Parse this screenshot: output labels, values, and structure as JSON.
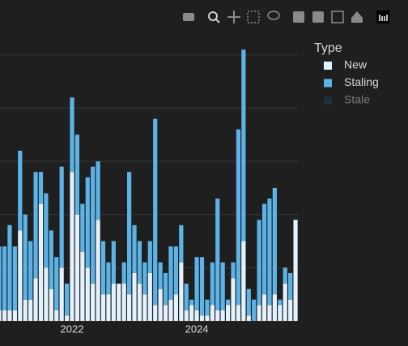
{
  "chart_data": {
    "type": "bar",
    "barmode": "stack",
    "categories": [
      null,
      null,
      null,
      null,
      null,
      null,
      null,
      null,
      null,
      null,
      null,
      null,
      null,
      null,
      "2022",
      null,
      null,
      null,
      null,
      null,
      null,
      null,
      null,
      null,
      null,
      null,
      null,
      null,
      null,
      null,
      null,
      null,
      null,
      null,
      null,
      null,
      null,
      null,
      "2024",
      null,
      null,
      null,
      null,
      null,
      null,
      null,
      null,
      null,
      null,
      null,
      null,
      null,
      null,
      null,
      null,
      null,
      null,
      null
    ],
    "series": [
      {
        "name": "New",
        "color": "#e3f2fd",
        "values": [
          2,
          2,
          2,
          2,
          17,
          4,
          4,
          8,
          22,
          10,
          6,
          2,
          10,
          1,
          28,
          20,
          13,
          10,
          7,
          19,
          5,
          5,
          7,
          7,
          7,
          5,
          9,
          7,
          5,
          9,
          3,
          6,
          3,
          4,
          5,
          11,
          2,
          3,
          2,
          1,
          1,
          3,
          2,
          2,
          3,
          8,
          3,
          15,
          1,
          0,
          3,
          5,
          3,
          5,
          3,
          7,
          4,
          19
        ]
      },
      {
        "name": "Staling",
        "color": "#5cb3e6",
        "values": [
          12,
          12,
          16,
          12,
          15,
          16,
          11,
          20,
          6,
          14,
          11,
          10,
          19,
          6,
          14,
          15,
          9,
          17,
          22,
          11,
          10,
          6,
          8,
          0,
          4,
          23,
          9,
          8,
          6,
          6,
          35,
          5,
          6,
          10,
          9,
          7,
          5,
          1,
          10,
          11,
          3,
          8,
          21,
          9,
          1,
          3,
          33,
          36,
          5,
          4,
          16,
          17,
          20,
          20,
          1,
          3,
          5,
          0
        ]
      },
      {
        "name": "Stale",
        "color": "#1d3d56",
        "visible": false
      }
    ],
    "legend_title": "Type",
    "ylim": [
      0,
      55
    ],
    "yticks": [
      0,
      10,
      20,
      30,
      40,
      50
    ],
    "grid": true
  }
}
